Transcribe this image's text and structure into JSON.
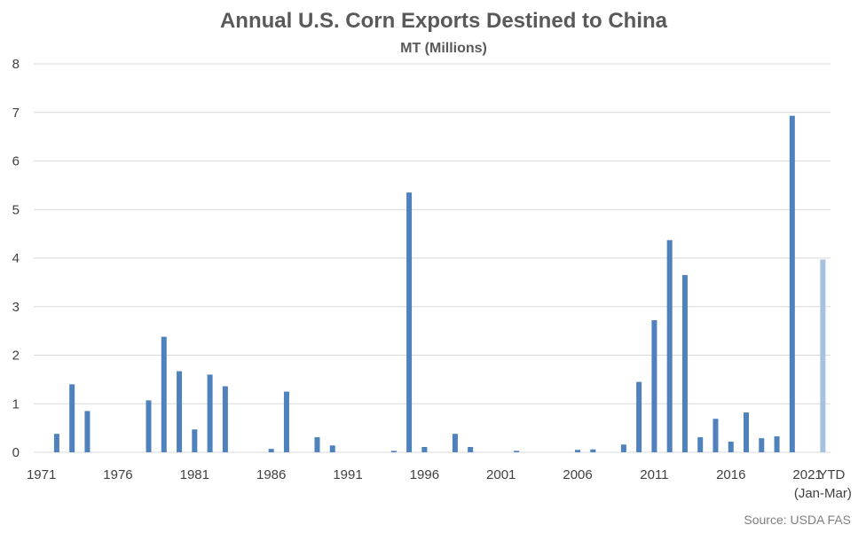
{
  "chart_data": {
    "type": "bar",
    "title": "Annual U.S. Corn Exports Destined to China",
    "subtitle": "MT (Millions)",
    "source": "Source: USDA FAS",
    "ylim": [
      0,
      8
    ],
    "yticks": [
      "0",
      "1",
      "2",
      "3",
      "4",
      "5",
      "6",
      "7",
      "8"
    ],
    "grid": true,
    "colors": {
      "bar": "#4f81bd",
      "ytd": "#a7c2e0",
      "grid": "#d9d9d9"
    },
    "categories": [
      "1971",
      "1972",
      "1973",
      "1974",
      "1975",
      "1976",
      "1977",
      "1978",
      "1979",
      "1980",
      "1981",
      "1982",
      "1983",
      "1984",
      "1985",
      "1986",
      "1987",
      "1988",
      "1989",
      "1990",
      "1991",
      "1992",
      "1993",
      "1994",
      "1995",
      "1996",
      "1997",
      "1998",
      "1999",
      "2000",
      "2001",
      "2002",
      "2003",
      "2004",
      "2005",
      "2006",
      "2007",
      "2008",
      "2009",
      "2010",
      "2011",
      "2012",
      "2013",
      "2014",
      "2015",
      "2016",
      "2017",
      "2018",
      "2019",
      "2020",
      "2021",
      "2021 YTD (Jan-Mar)"
    ],
    "xtick_labels": [
      {
        "index": 0,
        "text": "1971"
      },
      {
        "index": 5,
        "text": "1976"
      },
      {
        "index": 10,
        "text": "1981"
      },
      {
        "index": 15,
        "text": "1986"
      },
      {
        "index": 20,
        "text": "1991"
      },
      {
        "index": 25,
        "text": "1996"
      },
      {
        "index": 30,
        "text": "2001"
      },
      {
        "index": 35,
        "text": "2006"
      },
      {
        "index": 40,
        "text": "2011"
      },
      {
        "index": 45,
        "text": "2016"
      },
      {
        "index": 50,
        "text": "2021"
      }
    ],
    "ytd_label_line1": "YTD",
    "ytd_label_line2": "(Jan-Mar)",
    "series": [
      {
        "values": [
          0,
          0.38,
          1.4,
          0.85,
          0,
          0,
          0,
          1.07,
          2.38,
          1.67,
          0.47,
          1.6,
          1.36,
          0,
          0,
          0.07,
          1.25,
          0,
          0.31,
          0.14,
          0,
          0,
          0,
          0.03,
          5.35,
          0.11,
          0,
          0.38,
          0.11,
          0,
          0,
          0.03,
          0,
          0,
          0,
          0.05,
          0.06,
          0,
          0.16,
          1.45,
          2.72,
          4.37,
          3.65,
          0.31,
          0.69,
          0.22,
          0.82,
          0.29,
          0.33,
          6.93,
          0,
          3.97
        ]
      }
    ]
  }
}
